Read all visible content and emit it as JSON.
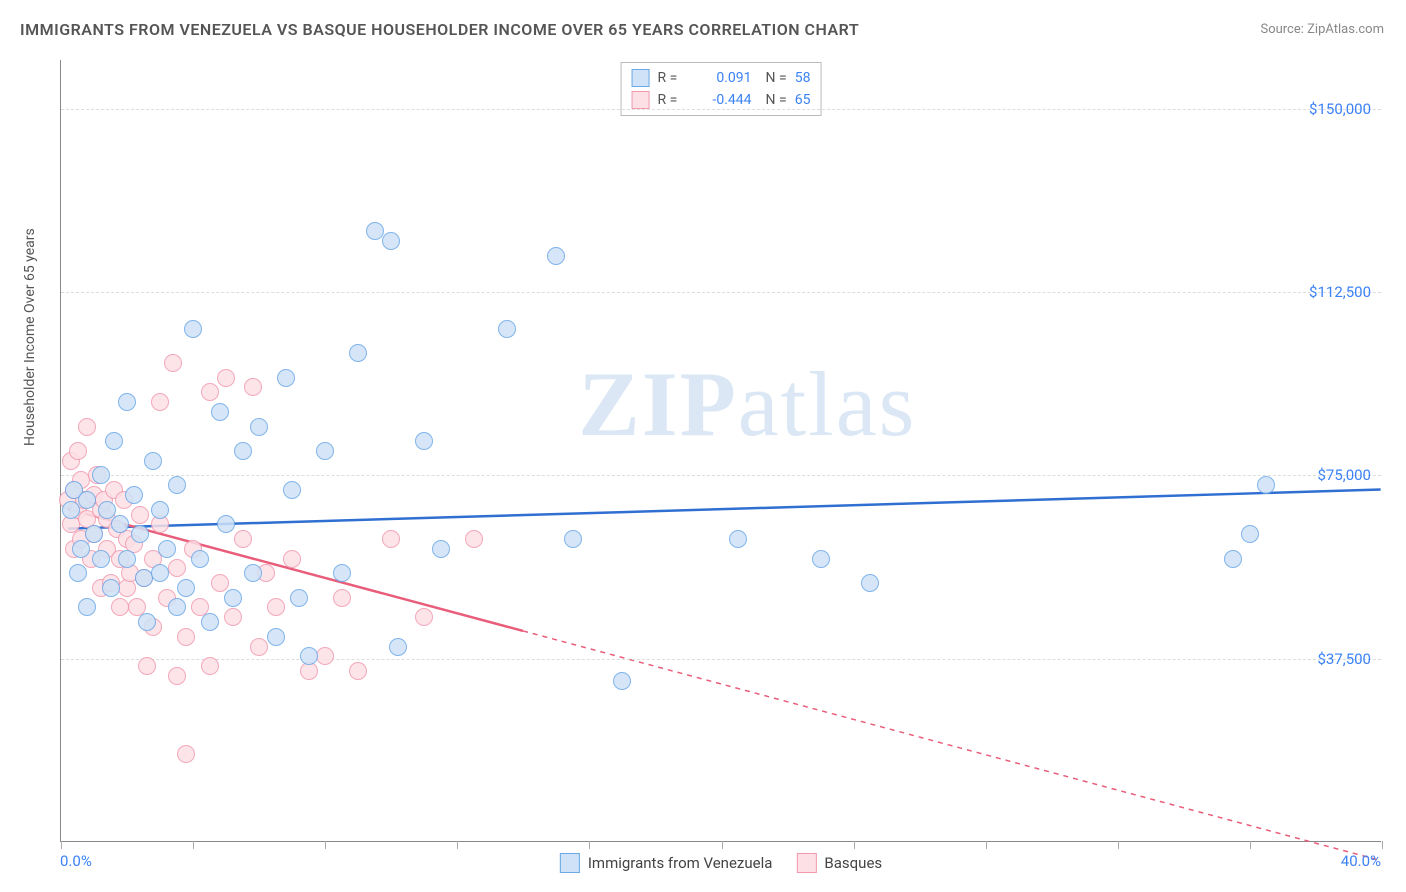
{
  "title": "IMMIGRANTS FROM VENEZUELA VS BASQUE HOUSEHOLDER INCOME OVER 65 YEARS CORRELATION CHART",
  "source": "Source: ZipAtlas.com",
  "ylabel": "Householder Income Over 65 years",
  "watermark_bold": "ZIP",
  "watermark_rest": "atlas",
  "chart": {
    "type": "scatter",
    "xlim": [
      0,
      40
    ],
    "ylim": [
      0,
      160000
    ],
    "xticks": [
      0,
      4,
      8,
      12,
      16,
      20,
      24,
      28,
      32,
      36,
      40
    ],
    "yticks": [
      37500,
      75000,
      112500,
      150000
    ],
    "ytick_labels": [
      "$37,500",
      "$75,000",
      "$112,500",
      "$150,000"
    ],
    "xtick_label_left": "0.0%",
    "xtick_label_right": "40.0%",
    "background_color": "#ffffff",
    "grid_color": "#dddddd",
    "series": [
      {
        "name": "Immigrants from Venezuela",
        "fill": "#cfe2f7",
        "stroke": "#6aa8e8",
        "line_color": "#2f6fd1",
        "marker_radius": 9,
        "r": 0.091,
        "n": 58,
        "trend": {
          "x1": 0.2,
          "y1": 64000,
          "x2": 40,
          "y2": 72000,
          "dashed_from": null
        },
        "points": [
          [
            0.3,
            68000
          ],
          [
            0.4,
            72000
          ],
          [
            0.5,
            55000
          ],
          [
            0.6,
            60000
          ],
          [
            0.8,
            70000
          ],
          [
            0.8,
            48000
          ],
          [
            1.0,
            63000
          ],
          [
            1.2,
            58000
          ],
          [
            1.2,
            75000
          ],
          [
            1.4,
            68000
          ],
          [
            1.5,
            52000
          ],
          [
            1.6,
            82000
          ],
          [
            1.8,
            65000
          ],
          [
            2.0,
            58000
          ],
          [
            2.0,
            90000
          ],
          [
            2.2,
            71000
          ],
          [
            2.4,
            63000
          ],
          [
            2.5,
            54000
          ],
          [
            2.6,
            45000
          ],
          [
            2.8,
            78000
          ],
          [
            3.0,
            68000
          ],
          [
            3.0,
            55000
          ],
          [
            3.2,
            60000
          ],
          [
            3.5,
            48000
          ],
          [
            3.5,
            73000
          ],
          [
            3.8,
            52000
          ],
          [
            4.0,
            105000
          ],
          [
            4.2,
            58000
          ],
          [
            4.5,
            45000
          ],
          [
            4.8,
            88000
          ],
          [
            5.0,
            65000
          ],
          [
            5.2,
            50000
          ],
          [
            5.5,
            80000
          ],
          [
            5.8,
            55000
          ],
          [
            6.0,
            85000
          ],
          [
            6.5,
            42000
          ],
          [
            6.8,
            95000
          ],
          [
            7.0,
            72000
          ],
          [
            7.2,
            50000
          ],
          [
            7.5,
            38000
          ],
          [
            8.0,
            80000
          ],
          [
            8.5,
            55000
          ],
          [
            9.0,
            100000
          ],
          [
            9.5,
            125000
          ],
          [
            10.0,
            123000
          ],
          [
            10.2,
            40000
          ],
          [
            11.0,
            82000
          ],
          [
            11.5,
            60000
          ],
          [
            13.5,
            105000
          ],
          [
            15.0,
            120000
          ],
          [
            15.5,
            62000
          ],
          [
            17.0,
            33000
          ],
          [
            20.5,
            62000
          ],
          [
            23.0,
            58000
          ],
          [
            24.5,
            53000
          ],
          [
            35.5,
            58000
          ],
          [
            36.0,
            63000
          ],
          [
            36.5,
            73000
          ]
        ]
      },
      {
        "name": "Basques",
        "fill": "#fce0e6",
        "stroke": "#f299ae",
        "line_color": "#e85d7a",
        "marker_radius": 9,
        "r": -0.444,
        "n": 65,
        "trend": {
          "x1": 0.2,
          "y1": 68000,
          "x2": 40,
          "y2": -4000,
          "dashed_from": 14
        },
        "points": [
          [
            0.2,
            70000
          ],
          [
            0.3,
            65000
          ],
          [
            0.3,
            78000
          ],
          [
            0.4,
            72000
          ],
          [
            0.4,
            60000
          ],
          [
            0.5,
            68000
          ],
          [
            0.5,
            80000
          ],
          [
            0.6,
            74000
          ],
          [
            0.6,
            62000
          ],
          [
            0.7,
            70000
          ],
          [
            0.8,
            85000
          ],
          [
            0.8,
            66000
          ],
          [
            0.9,
            58000
          ],
          [
            1.0,
            71000
          ],
          [
            1.0,
            63000
          ],
          [
            1.1,
            75000
          ],
          [
            1.2,
            68000
          ],
          [
            1.2,
            52000
          ],
          [
            1.3,
            70000
          ],
          [
            1.4,
            60000
          ],
          [
            1.4,
            66000
          ],
          [
            1.5,
            53000
          ],
          [
            1.6,
            72000
          ],
          [
            1.7,
            64000
          ],
          [
            1.8,
            48000
          ],
          [
            1.8,
            58000
          ],
          [
            1.9,
            70000
          ],
          [
            2.0,
            62000
          ],
          [
            2.0,
            52000
          ],
          [
            2.1,
            55000
          ],
          [
            2.2,
            61000
          ],
          [
            2.3,
            48000
          ],
          [
            2.4,
            67000
          ],
          [
            2.5,
            54000
          ],
          [
            2.6,
            36000
          ],
          [
            2.8,
            58000
          ],
          [
            2.8,
            44000
          ],
          [
            3.0,
            65000
          ],
          [
            3.0,
            90000
          ],
          [
            3.2,
            50000
          ],
          [
            3.4,
            98000
          ],
          [
            3.5,
            56000
          ],
          [
            3.5,
            34000
          ],
          [
            3.8,
            42000
          ],
          [
            4.0,
            60000
          ],
          [
            4.2,
            48000
          ],
          [
            4.5,
            92000
          ],
          [
            4.5,
            36000
          ],
          [
            4.8,
            53000
          ],
          [
            5.0,
            95000
          ],
          [
            5.2,
            46000
          ],
          [
            5.5,
            62000
          ],
          [
            5.8,
            93000
          ],
          [
            6.0,
            40000
          ],
          [
            6.2,
            55000
          ],
          [
            6.5,
            48000
          ],
          [
            7.0,
            58000
          ],
          [
            7.5,
            35000
          ],
          [
            8.0,
            38000
          ],
          [
            8.5,
            50000
          ],
          [
            9.0,
            35000
          ],
          [
            10.0,
            62000
          ],
          [
            11.0,
            46000
          ],
          [
            12.5,
            62000
          ],
          [
            3.8,
            18000
          ]
        ]
      }
    ]
  },
  "legend_bottom": [
    {
      "label": "Immigrants from Venezuela",
      "fill": "#cfe2f7",
      "stroke": "#6aa8e8"
    },
    {
      "label": "Basques",
      "fill": "#fce0e6",
      "stroke": "#f299ae"
    }
  ]
}
